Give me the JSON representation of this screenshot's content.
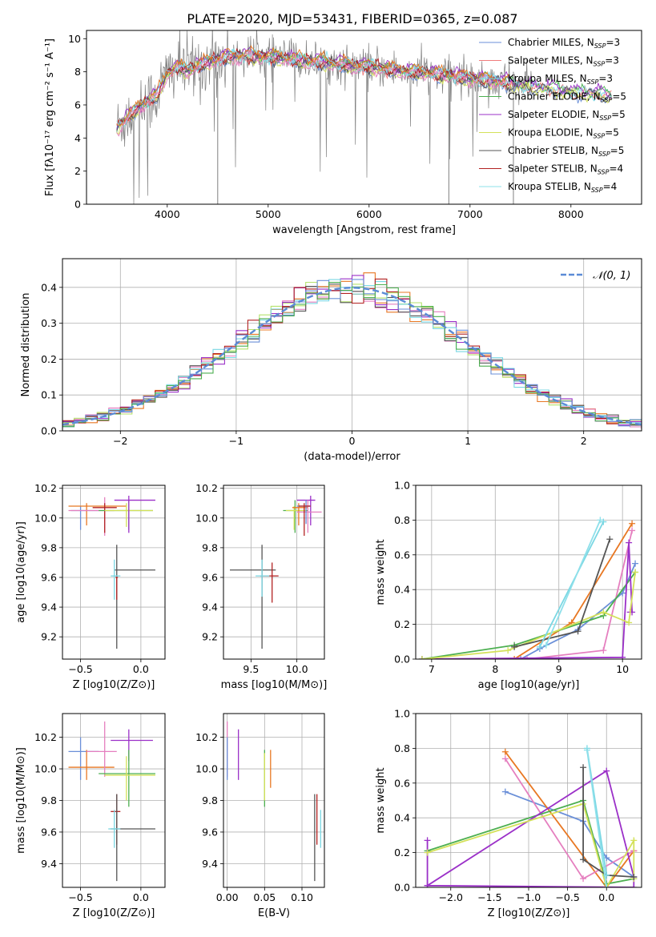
{
  "title": "PLATE=2020, MJD=53431, FIBERID=0365, z=0.087",
  "colors": {
    "Chabrier MILES": "#6a8fd8",
    "Salpeter MILES": "#f07c7c",
    "Kroupa MILES": "#7ad7e3",
    "Chabrier ELODIE": "#4caf50",
    "Salpeter ELODIE": "#9b30c8",
    "Kroupa ELODIE": "#d4e15a",
    "Chabrier STELIB": "#555555",
    "Salpeter STELIB": "#b22222",
    "Kroupa STELIB": "#8ee0ea",
    "data": "#808080",
    "orange": "#e87722",
    "pink": "#e57fbf",
    "lime": "#b5e36d",
    "grid": "#b0b0b0",
    "gauss": "#5b8bd6"
  },
  "chart_data": [
    {
      "type": "line",
      "name": "spectrum",
      "xlabel": "wavelength [Angstrom, rest frame]",
      "ylabel": "Flux [fλ10⁻¹⁷ erg cm⁻² s⁻¹ A⁻¹]",
      "xlim": [
        3200,
        8700
      ],
      "ylim": [
        0,
        10.5
      ],
      "xticks": [
        4000,
        5000,
        6000,
        7000,
        8000
      ],
      "yticks": [
        0,
        2,
        4,
        6,
        8,
        10
      ],
      "grid": false,
      "legend_position": "top-right",
      "legend": [
        "Chabrier MILES, N_SSP=3",
        "Salpeter MILES, N_SSP=3",
        "Kroupa MILES, N_SSP=3",
        "Chabrier ELODIE, N_SSP=5",
        "Salpeter ELODIE, N_SSP=5",
        "Kroupa ELODIE, N_SSP=5",
        "Chabrier STELIB, N_SSP=5",
        "Salpeter STELIB, N_SSP=4",
        "Kroupa STELIB, N_SSP=4"
      ],
      "continuum": {
        "x": [
          3500,
          3600,
          3700,
          3800,
          3900,
          4000,
          4100,
          4200,
          4400,
          4600,
          4800,
          5000,
          5200,
          5500,
          5800,
          6000,
          6300,
          6600,
          6800,
          7000,
          7200,
          7400,
          7600,
          7800,
          8000,
          8200,
          8400
        ],
        "y": [
          4.6,
          5.2,
          5.8,
          6.2,
          6.6,
          7.9,
          8.3,
          8.1,
          8.6,
          8.9,
          9.0,
          8.9,
          8.8,
          8.6,
          8.4,
          8.3,
          8.1,
          7.9,
          7.8,
          7.6,
          7.5,
          7.3,
          7.1,
          7.0,
          6.8,
          6.7,
          6.6
        ]
      }
    },
    {
      "type": "bar",
      "name": "residual-histogram",
      "xlabel": "(data-model)/error",
      "ylabel": "Normed distribution",
      "xlim": [
        -2.5,
        2.5
      ],
      "ylim": [
        0,
        0.48
      ],
      "xticks": [
        -2,
        -1,
        0,
        1,
        2
      ],
      "yticks": [
        0.0,
        0.1,
        0.2,
        0.3,
        0.4
      ],
      "grid": true,
      "legend_position": "top-right",
      "legend": [
        "𝒩(0, 1)"
      ],
      "gaussian": {
        "mean": 0.0,
        "sigma": 1.0
      }
    },
    {
      "type": "scatter",
      "name": "age-vs-Z",
      "xlabel": "Z [log10(Z/Z⊙)]",
      "ylabel": "age  [log10(age/yr)]",
      "xlim": [
        -0.65,
        0.2
      ],
      "ylim": [
        9.05,
        10.22
      ],
      "xticks": [
        -0.5,
        0.0
      ],
      "yticks": [
        9.2,
        9.4,
        9.6,
        9.8,
        10.0,
        10.2
      ],
      "grid": true,
      "points": [
        {
          "c": "#6a8fd8",
          "x": -0.5,
          "y": 10.05,
          "x_lo": -0.58,
          "x_hi": -0.35,
          "y_lo": 9.92,
          "y_hi": 10.08
        },
        {
          "c": "#e87722",
          "x": -0.45,
          "y": 10.08,
          "x_lo": -0.6,
          "x_hi": -0.12,
          "y_lo": 9.95,
          "y_hi": 10.1
        },
        {
          "c": "#e57fbf",
          "x": -0.3,
          "y": 10.05,
          "x_lo": -0.6,
          "x_hi": -0.22,
          "y_lo": 9.88,
          "y_hi": 10.14
        },
        {
          "c": "#b22222",
          "x": -0.3,
          "y": 10.07,
          "x_lo": -0.4,
          "x_hi": -0.2,
          "y_lo": 9.9,
          "y_hi": 10.1
        },
        {
          "c": "#4caf50",
          "x": -0.1,
          "y": 10.05,
          "x_lo": -0.35,
          "x_hi": 0.1,
          "y_lo": 9.92,
          "y_hi": 10.12
        },
        {
          "c": "#d4e15a",
          "x": -0.12,
          "y": 10.05,
          "x_lo": -0.3,
          "x_hi": 0.1,
          "y_lo": 9.94,
          "y_hi": 10.1
        },
        {
          "c": "#9b30c8",
          "x": -0.1,
          "y": 10.12,
          "x_lo": -0.22,
          "x_hi": 0.12,
          "y_lo": 9.9,
          "y_hi": 10.15
        },
        {
          "c": "#555555",
          "x": -0.2,
          "y": 9.65,
          "x_lo": -0.22,
          "x_hi": 0.12,
          "y_lo": 9.12,
          "y_hi": 9.82
        },
        {
          "c": "#7ad7e3",
          "x": -0.22,
          "y": 9.61,
          "x_lo": -0.25,
          "x_hi": -0.17,
          "y_lo": 9.45,
          "y_hi": 9.72
        },
        {
          "c": "#b22222",
          "x": -0.2,
          "y": 9.6,
          "x_lo": -0.21,
          "x_hi": -0.19,
          "y_lo": 9.45,
          "y_hi": 9.6
        }
      ]
    },
    {
      "type": "scatter",
      "name": "age-vs-mass",
      "xlabel": "mass [log10(M/M⊙)]",
      "ylabel": "",
      "xlim": [
        9.2,
        10.3
      ],
      "ylim": [
        9.05,
        10.22
      ],
      "xticks": [
        9.5,
        10.0
      ],
      "yticks": [
        9.2,
        9.4,
        9.6,
        9.8,
        10.0,
        10.2
      ],
      "grid": true,
      "points": [
        {
          "c": "#555555",
          "x": 9.62,
          "y": 9.65,
          "x_lo": 9.27,
          "x_hi": 9.77,
          "y_lo": 9.12,
          "y_hi": 9.82
        },
        {
          "c": "#b22222",
          "x": 9.73,
          "y": 9.61,
          "x_lo": 9.6,
          "x_hi": 9.8,
          "y_lo": 9.43,
          "y_hi": 9.7
        },
        {
          "c": "#7ad7e3",
          "x": 9.62,
          "y": 9.61,
          "x_lo": 9.55,
          "x_hi": 9.7,
          "y_lo": 9.47,
          "y_hi": 9.72
        },
        {
          "c": "#4caf50",
          "x": 9.98,
          "y": 10.05,
          "x_lo": 9.85,
          "x_hi": 10.12,
          "y_lo": 9.9,
          "y_hi": 10.12
        },
        {
          "c": "#d4e15a",
          "x": 9.97,
          "y": 10.05,
          "x_lo": 9.88,
          "x_hi": 10.1,
          "y_lo": 9.92,
          "y_hi": 10.08
        },
        {
          "c": "#e87722",
          "x": 10.02,
          "y": 10.07,
          "x_lo": 9.95,
          "x_hi": 10.12,
          "y_lo": 9.95,
          "y_hi": 10.1
        },
        {
          "c": "#9b30c8",
          "x": 10.15,
          "y": 10.12,
          "x_lo": 10.0,
          "x_hi": 10.2,
          "y_lo": 9.95,
          "y_hi": 10.15
        },
        {
          "c": "#e57fbf",
          "x": 10.12,
          "y": 10.04,
          "x_lo": 10.0,
          "x_hi": 10.27,
          "y_lo": 9.9,
          "y_hi": 10.12
        },
        {
          "c": "#6a8fd8",
          "x": 10.1,
          "y": 10.08,
          "x_lo": 10.0,
          "x_hi": 10.15,
          "y_lo": 9.96,
          "y_hi": 10.12
        },
        {
          "c": "#b22222",
          "x": 10.08,
          "y": 10.08,
          "x_lo": 10.02,
          "x_hi": 10.15,
          "y_lo": 9.88,
          "y_hi": 10.1
        }
      ]
    },
    {
      "type": "line",
      "name": "mass-weight-vs-age",
      "xlabel": "age  [log10(age/yr)]",
      "ylabel": "mass weight",
      "xlim": [
        6.75,
        10.3
      ],
      "ylim": [
        0.0,
        1.0
      ],
      "xticks": [
        7,
        8,
        9,
        10
      ],
      "yticks": [
        0.0,
        0.2,
        0.4,
        0.6,
        0.8,
        1.0
      ],
      "grid": true,
      "series": [
        {
          "c": "#6a8fd8",
          "x": [
            8.4,
            8.7,
            9.3,
            10.0,
            10.2
          ],
          "y": [
            0.0,
            0.06,
            0.17,
            0.38,
            0.55
          ]
        },
        {
          "c": "#e87722",
          "x": [
            8.3,
            9.2,
            10.15
          ],
          "y": [
            0.0,
            0.21,
            0.78
          ]
        },
        {
          "c": "#e57fbf",
          "x": [
            8.5,
            9.7,
            10.15
          ],
          "y": [
            0.0,
            0.05,
            0.74
          ]
        },
        {
          "c": "#4caf50",
          "x": [
            6.85,
            8.3,
            9.7,
            10.2
          ],
          "y": [
            0.0,
            0.08,
            0.25,
            0.5
          ]
        },
        {
          "c": "#9b30c8",
          "x": [
            6.85,
            10.0,
            10.1,
            10.15,
            10.12
          ],
          "y": [
            0.0,
            0.01,
            0.67,
            0.27,
            0.27
          ]
        },
        {
          "c": "#d4e15a",
          "x": [
            6.85,
            8.2,
            9.7,
            10.1,
            10.2
          ],
          "y": [
            0.0,
            0.05,
            0.27,
            0.21,
            0.5
          ]
        },
        {
          "c": "#555555",
          "x": [
            8.3,
            9.3,
            9.8
          ],
          "y": [
            0.07,
            0.16,
            0.69
          ]
        },
        {
          "c": "#7ad7e3",
          "x": [
            8.7,
            9.7
          ],
          "y": [
            0.07,
            0.79
          ]
        },
        {
          "c": "#8ee0ea",
          "x": [
            8.8,
            9.65
          ],
          "y": [
            0.08,
            0.8
          ]
        }
      ]
    },
    {
      "type": "scatter",
      "name": "mass-vs-Z",
      "xlabel": "Z [log10(Z/Z⊙)]",
      "ylabel": "mass [log10(M/M⊙)]",
      "xlim": [
        -0.65,
        0.2
      ],
      "ylim": [
        9.25,
        10.35
      ],
      "xticks": [
        -0.5,
        0.0
      ],
      "yticks": [
        9.4,
        9.6,
        9.8,
        10.0,
        10.2
      ],
      "grid": true,
      "points": [
        {
          "c": "#6a8fd8",
          "x": -0.5,
          "y": 10.11,
          "x_lo": -0.6,
          "x_hi": -0.35,
          "y_lo": 9.93,
          "y_hi": 10.2
        },
        {
          "c": "#e87722",
          "x": -0.45,
          "y": 10.01,
          "x_lo": -0.6,
          "x_hi": -0.22,
          "y_lo": 9.93,
          "y_hi": 10.12
        },
        {
          "c": "#e57fbf",
          "x": -0.3,
          "y": 10.11,
          "x_lo": -0.45,
          "x_hi": -0.2,
          "y_lo": 9.95,
          "y_hi": 10.3
        },
        {
          "c": "#9b30c8",
          "x": -0.1,
          "y": 10.18,
          "x_lo": -0.25,
          "x_hi": 0.1,
          "y_lo": 10.05,
          "y_hi": 10.25
        },
        {
          "c": "#4caf50",
          "x": -0.1,
          "y": 9.97,
          "x_lo": -0.35,
          "x_hi": 0.12,
          "y_lo": 9.76,
          "y_hi": 10.12
        },
        {
          "c": "#d4e15a",
          "x": -0.12,
          "y": 9.96,
          "x_lo": -0.3,
          "x_hi": 0.12,
          "y_lo": 9.8,
          "y_hi": 10.08
        },
        {
          "c": "#b22222",
          "x": -0.2,
          "y": 9.73,
          "x_lo": -0.25,
          "x_hi": -0.17,
          "y_lo": 9.52,
          "y_hi": 9.84
        },
        {
          "c": "#555555",
          "x": -0.2,
          "y": 9.62,
          "x_lo": -0.25,
          "x_hi": 0.12,
          "y_lo": 9.29,
          "y_hi": 9.84
        },
        {
          "c": "#7ad7e3",
          "x": -0.22,
          "y": 9.62,
          "x_lo": -0.27,
          "x_hi": -0.17,
          "y_lo": 9.5,
          "y_hi": 9.74
        }
      ]
    },
    {
      "type": "scatter",
      "name": "mass-vs-ebv",
      "xlabel": "E(B-V)",
      "ylabel": "",
      "xlim": [
        -0.005,
        0.13
      ],
      "ylim": [
        9.25,
        10.35
      ],
      "xticks": [
        0.0,
        0.05,
        0.1
      ],
      "yticks": [
        9.4,
        9.6,
        9.8,
        10.0,
        10.2
      ],
      "grid": true,
      "points": [
        {
          "c": "#e57fbf",
          "x": 0.0,
          "y": 10.12,
          "x_lo": 0.0,
          "x_hi": 0.0,
          "y_lo": 9.95,
          "y_hi": 10.3
        },
        {
          "c": "#6a8fd8",
          "x": 0.0,
          "y": 10.11,
          "x_lo": 0.0,
          "x_hi": 0.0,
          "y_lo": 9.93,
          "y_hi": 10.2
        },
        {
          "c": "#9b30c8",
          "x": 0.015,
          "y": 10.18,
          "x_lo": 0.015,
          "x_hi": 0.015,
          "y_lo": 9.93,
          "y_hi": 10.25
        },
        {
          "c": "#4caf50",
          "x": 0.05,
          "y": 9.97,
          "x_lo": 0.05,
          "x_hi": 0.05,
          "y_lo": 9.76,
          "y_hi": 10.12
        },
        {
          "c": "#d4e15a",
          "x": 0.05,
          "y": 9.96,
          "x_lo": 0.05,
          "x_hi": 0.05,
          "y_lo": 9.8,
          "y_hi": 10.1
        },
        {
          "c": "#e87722",
          "x": 0.058,
          "y": 10.01,
          "x_lo": 0.058,
          "x_hi": 0.058,
          "y_lo": 9.88,
          "y_hi": 10.12
        },
        {
          "c": "#555555",
          "x": 0.117,
          "y": 9.62,
          "x_lo": 0.117,
          "x_hi": 0.117,
          "y_lo": 9.29,
          "y_hi": 9.84
        },
        {
          "c": "#b22222",
          "x": 0.12,
          "y": 9.73,
          "x_lo": 0.12,
          "x_hi": 0.12,
          "y_lo": 9.52,
          "y_hi": 9.84
        },
        {
          "c": "#7ad7e3",
          "x": 0.125,
          "y": 9.62,
          "x_lo": 0.125,
          "x_hi": 0.125,
          "y_lo": 9.5,
          "y_hi": 9.74
        }
      ]
    },
    {
      "type": "line",
      "name": "mass-weight-vs-Z",
      "xlabel": "Z [log10(Z/Z⊙)]",
      "ylabel": "mass weight",
      "xlim": [
        -2.45,
        0.45
      ],
      "ylim": [
        0.0,
        1.0
      ],
      "xticks": [
        -2.0,
        -1.5,
        -1.0,
        -0.5,
        0.0
      ],
      "yticks": [
        0.0,
        0.2,
        0.4,
        0.6,
        0.8,
        1.0
      ],
      "grid": true,
      "series": [
        {
          "c": "#6a8fd8",
          "x": [
            -1.3,
            -0.3,
            0.0,
            0.35
          ],
          "y": [
            0.55,
            0.38,
            0.17,
            0.06
          ]
        },
        {
          "c": "#e87722",
          "x": [
            -1.3,
            0.0,
            0.35
          ],
          "y": [
            0.78,
            0.0,
            0.21
          ]
        },
        {
          "c": "#e57fbf",
          "x": [
            -1.3,
            -0.3,
            0.35
          ],
          "y": [
            0.74,
            0.05,
            0.21
          ]
        },
        {
          "c": "#4caf50",
          "x": [
            -2.3,
            -0.3,
            0.0,
            0.35
          ],
          "y": [
            0.21,
            0.5,
            0.02,
            0.05
          ]
        },
        {
          "c": "#9b30c8",
          "x": [
            -2.3,
            -2.3,
            0.0,
            0.35,
            0.35,
            -2.3
          ],
          "y": [
            0.27,
            0.01,
            0.67,
            0.06,
            0.0,
            0.01
          ]
        },
        {
          "c": "#d4e15a",
          "x": [
            -2.3,
            -0.3,
            0.0,
            0.35,
            0.35
          ],
          "y": [
            0.2,
            0.48,
            0.0,
            0.27,
            0.05
          ]
        },
        {
          "c": "#555555",
          "x": [
            -0.3,
            -0.3,
            0.0,
            0.35
          ],
          "y": [
            0.69,
            0.16,
            0.07,
            0.06
          ]
        },
        {
          "c": "#7ad7e3",
          "x": [
            -0.25,
            0.0
          ],
          "y": [
            0.8,
            0.07
          ]
        },
        {
          "c": "#8ee0ea",
          "x": [
            -0.25,
            0.0
          ],
          "y": [
            0.79,
            0.0
          ]
        }
      ]
    }
  ]
}
